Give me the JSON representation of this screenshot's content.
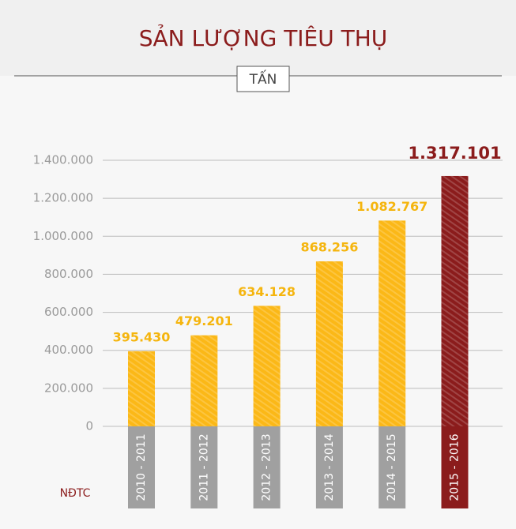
{
  "chart_data": {
    "type": "bar",
    "title": "SẢN LƯỢNG TIÊU THỤ",
    "unit": "TẤN",
    "x_label": "NĐTC",
    "categories": [
      "2010 - 2011",
      "2011 - 2012",
      "2012 - 2013",
      "2013 - 2014",
      "2014 - 2015",
      "2015 - 2016"
    ],
    "values": [
      395430,
      479201,
      634128,
      868256,
      1082767,
      1317101
    ],
    "value_labels": [
      "395.430",
      "479.201",
      "634.128",
      "868.256",
      "1.082.767",
      "1.317.101"
    ],
    "colors": [
      "#fbb817",
      "#fbb817",
      "#fbb817",
      "#fbb817",
      "#fbb817",
      "#8b1c1c"
    ],
    "label_colors": [
      "#a0a0a0",
      "#a0a0a0",
      "#a0a0a0",
      "#a0a0a0",
      "#a0a0a0",
      "#8b1c1c"
    ],
    "ylim": [
      0,
      1400000
    ],
    "yticks": [
      0,
      {
        "value": 200000,
        "label": "200.000"
      },
      {
        "value": 400000,
        "label": "400.000"
      },
      {
        "value": 600000,
        "label": "600.000"
      },
      {
        "value": 800000,
        "label": "800.000"
      },
      {
        "value": 1000000,
        "label": "1.000.000"
      },
      {
        "value": 1200000,
        "label": "1.200.000"
      },
      {
        "value": 1400000,
        "label": "1.400.000"
      }
    ],
    "grid": true
  }
}
